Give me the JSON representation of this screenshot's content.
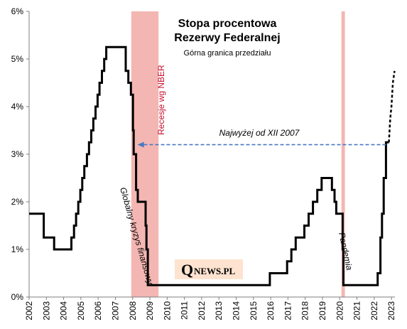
{
  "chart_data": {
    "type": "line",
    "title": "Stopa procentowa",
    "subtitle": "Rezerwy Federalnej",
    "note": "Górna granica przedziału",
    "ylim": [
      0,
      6
    ],
    "xlim": [
      2002,
      2023.2
    ],
    "y_ticks": [
      "0%",
      "1%",
      "2%",
      "3%",
      "4%",
      "5%",
      "6%"
    ],
    "x_ticks": [
      "2002",
      "2003",
      "2004",
      "2005",
      "2006",
      "2007",
      "2008",
      "2009",
      "2010",
      "2011",
      "2012",
      "2013",
      "2014",
      "2015",
      "2016",
      "2017",
      "2018",
      "2019",
      "2020",
      "2021",
      "2022",
      "2023"
    ],
    "grid": false,
    "series": [
      {
        "style": "solid",
        "color": "#000000",
        "points": [
          [
            2002.0,
            1.75
          ],
          [
            2002.85,
            1.75
          ],
          [
            2002.85,
            1.25
          ],
          [
            2003.45,
            1.25
          ],
          [
            2003.45,
            1.0
          ],
          [
            2004.45,
            1.0
          ],
          [
            2004.45,
            1.25
          ],
          [
            2004.6,
            1.25
          ],
          [
            2004.6,
            1.5
          ],
          [
            2004.72,
            1.5
          ],
          [
            2004.72,
            1.75
          ],
          [
            2004.85,
            1.75
          ],
          [
            2004.85,
            2.0
          ],
          [
            2004.97,
            2.0
          ],
          [
            2004.97,
            2.25
          ],
          [
            2005.08,
            2.25
          ],
          [
            2005.08,
            2.5
          ],
          [
            2005.2,
            2.5
          ],
          [
            2005.2,
            2.75
          ],
          [
            2005.35,
            2.75
          ],
          [
            2005.35,
            3.0
          ],
          [
            2005.47,
            3.0
          ],
          [
            2005.47,
            3.25
          ],
          [
            2005.6,
            3.25
          ],
          [
            2005.6,
            3.5
          ],
          [
            2005.72,
            3.5
          ],
          [
            2005.72,
            3.75
          ],
          [
            2005.85,
            3.75
          ],
          [
            2005.85,
            4.0
          ],
          [
            2005.97,
            4.0
          ],
          [
            2005.97,
            4.25
          ],
          [
            2006.08,
            4.25
          ],
          [
            2006.08,
            4.5
          ],
          [
            2006.22,
            4.5
          ],
          [
            2006.22,
            4.75
          ],
          [
            2006.35,
            4.75
          ],
          [
            2006.35,
            5.0
          ],
          [
            2006.47,
            5.0
          ],
          [
            2006.47,
            5.25
          ],
          [
            2007.6,
            5.25
          ],
          [
            2007.6,
            4.75
          ],
          [
            2007.75,
            4.75
          ],
          [
            2007.75,
            4.5
          ],
          [
            2007.9,
            4.5
          ],
          [
            2007.9,
            4.25
          ],
          [
            2008.02,
            4.25
          ],
          [
            2008.02,
            3.5
          ],
          [
            2008.06,
            3.5
          ],
          [
            2008.06,
            3.0
          ],
          [
            2008.2,
            3.0
          ],
          [
            2008.2,
            2.25
          ],
          [
            2008.3,
            2.25
          ],
          [
            2008.3,
            2.0
          ],
          [
            2008.75,
            2.0
          ],
          [
            2008.75,
            1.5
          ],
          [
            2008.8,
            1.5
          ],
          [
            2008.8,
            1.0
          ],
          [
            2008.88,
            1.0
          ],
          [
            2008.88,
            0.25
          ],
          [
            2015.95,
            0.25
          ],
          [
            2015.95,
            0.5
          ],
          [
            2016.95,
            0.5
          ],
          [
            2016.95,
            0.75
          ],
          [
            2017.2,
            0.75
          ],
          [
            2017.2,
            1.0
          ],
          [
            2017.45,
            1.0
          ],
          [
            2017.45,
            1.25
          ],
          [
            2017.95,
            1.25
          ],
          [
            2017.95,
            1.5
          ],
          [
            2018.2,
            1.5
          ],
          [
            2018.2,
            1.75
          ],
          [
            2018.45,
            1.75
          ],
          [
            2018.45,
            2.0
          ],
          [
            2018.7,
            2.0
          ],
          [
            2018.7,
            2.25
          ],
          [
            2018.95,
            2.25
          ],
          [
            2018.95,
            2.5
          ],
          [
            2019.55,
            2.5
          ],
          [
            2019.55,
            2.25
          ],
          [
            2019.7,
            2.25
          ],
          [
            2019.7,
            2.0
          ],
          [
            2019.8,
            2.0
          ],
          [
            2019.8,
            1.75
          ],
          [
            2020.17,
            1.75
          ],
          [
            2020.17,
            1.0
          ],
          [
            2020.21,
            1.0
          ],
          [
            2020.21,
            0.25
          ],
          [
            2022.2,
            0.25
          ],
          [
            2022.2,
            0.5
          ],
          [
            2022.36,
            0.5
          ],
          [
            2022.36,
            1.25
          ],
          [
            2022.45,
            1.25
          ],
          [
            2022.45,
            1.75
          ],
          [
            2022.55,
            1.75
          ],
          [
            2022.55,
            2.5
          ],
          [
            2022.68,
            2.5
          ],
          [
            2022.68,
            3.25
          ],
          [
            2022.85,
            3.25
          ]
        ]
      },
      {
        "style": "dashed",
        "color": "#000000",
        "points": [
          [
            2022.85,
            3.25
          ],
          [
            2022.93,
            3.75
          ],
          [
            2023.0,
            4.0
          ],
          [
            2023.08,
            4.5
          ],
          [
            2023.18,
            4.75
          ]
        ]
      }
    ],
    "recessions": [
      {
        "label": "Recesje wg NBER",
        "start": 2007.92,
        "end": 2009.5
      },
      {
        "start": 2020.1,
        "end": 2020.3
      }
    ],
    "annotations": {
      "arrow_label": "Najwyżej od XII 2007",
      "arrow_from": [
        2022.85,
        3.2
      ],
      "arrow_to": [
        2008.2,
        3.2
      ],
      "crisis_label": "Globalny kryzys finansowy",
      "pandemic_label": "Pandemia"
    },
    "colors": {
      "recession": "#f4b6b2",
      "pandemic_line": "#f4b6b2",
      "arrow": "#4a78c4",
      "recession_text": "#c8102e",
      "logo_bg": "#fde3d0"
    },
    "logo": {
      "q": "Q",
      "text": "NEWS.PL"
    }
  }
}
